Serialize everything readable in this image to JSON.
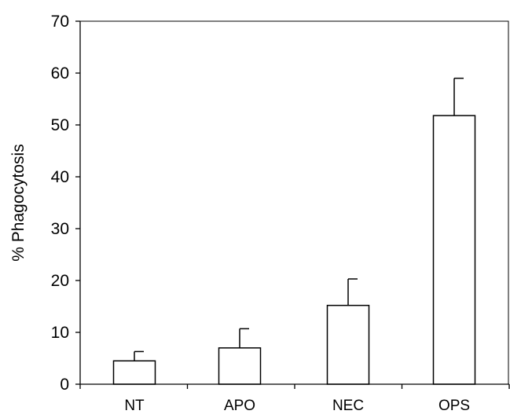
{
  "chart_data": {
    "type": "bar",
    "title": "",
    "xlabel": "",
    "ylabel": "% Phagocytosis",
    "categories": [
      "NT",
      "APO",
      "NEC",
      "OPS"
    ],
    "values": [
      4.5,
      7,
      15.2,
      51.8
    ],
    "error_upper": [
      1.8,
      3.7,
      5.1,
      7.2
    ],
    "ylim": [
      0,
      70
    ],
    "yticks": [
      "0",
      "10",
      "20",
      "30",
      "40",
      "50",
      "60",
      "70"
    ],
    "grid": false,
    "legend": "none",
    "bar_fill": "#ffffff",
    "bar_stroke": "#000000"
  }
}
